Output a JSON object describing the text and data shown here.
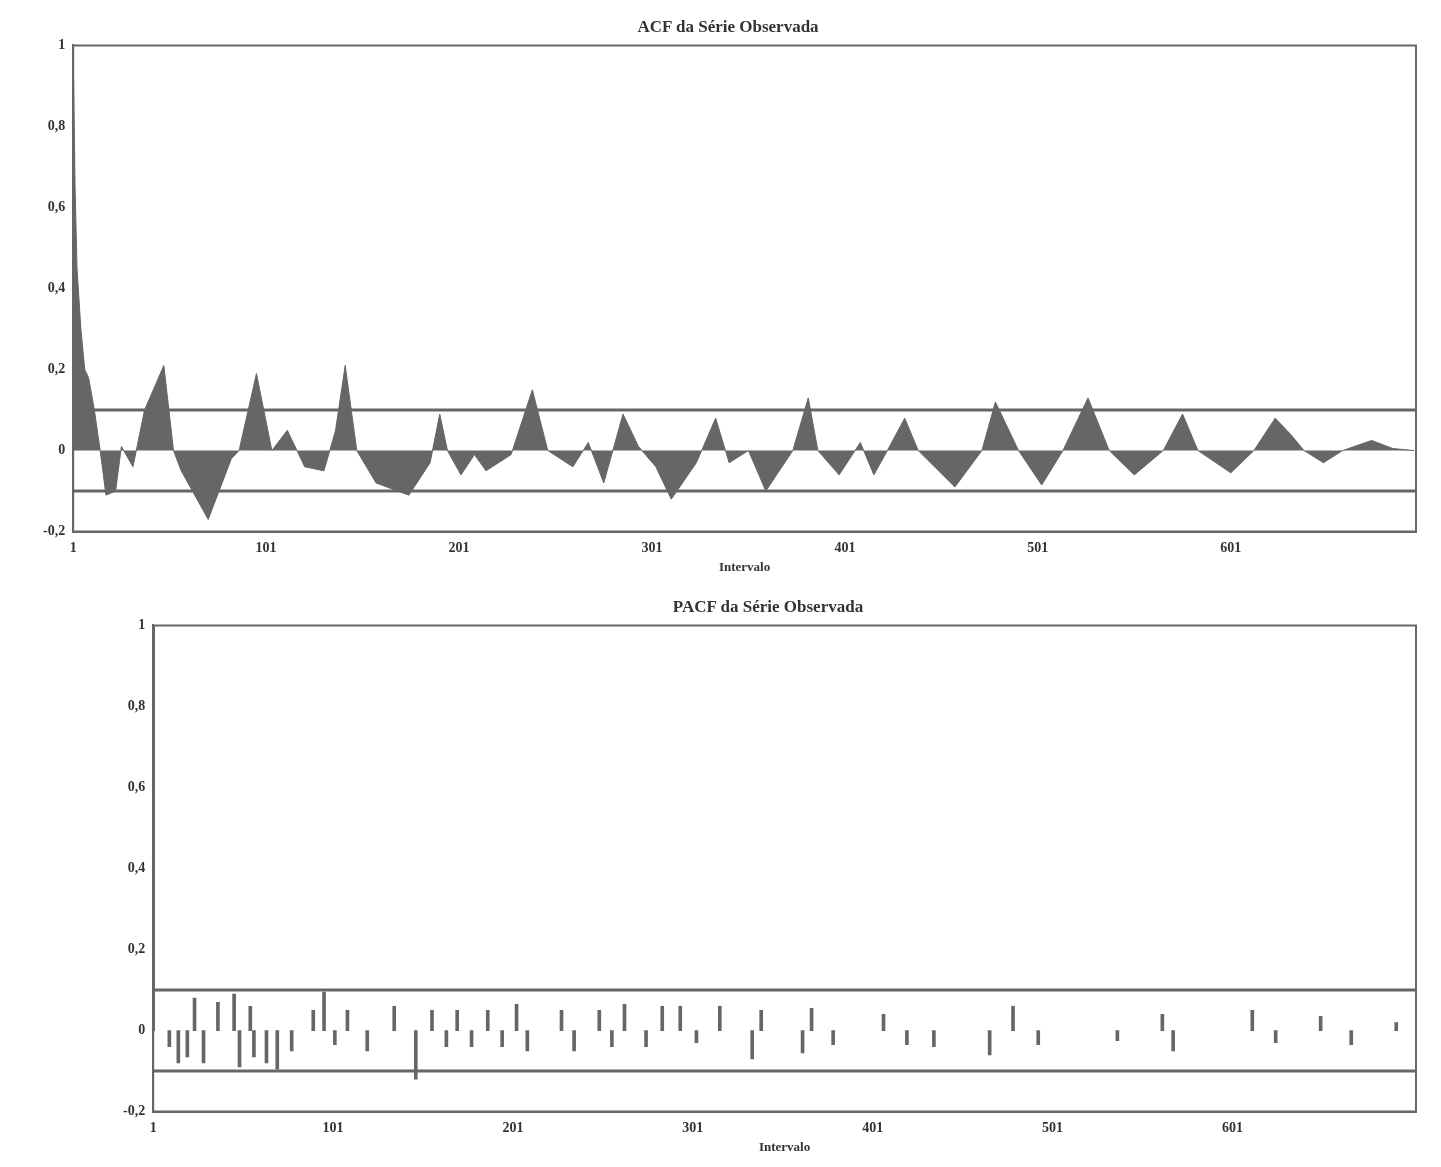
{
  "chart_data": [
    {
      "type": "area",
      "title": "ACF da Série Observada",
      "xlabel": "Intervalo",
      "color": "#666666",
      "x": [
        1,
        2,
        3,
        5,
        7,
        9,
        12,
        15,
        18,
        23,
        26,
        32,
        38,
        48,
        53,
        57,
        71,
        83,
        87,
        96,
        104,
        112,
        121,
        131,
        137,
        142,
        148,
        158,
        175,
        186,
        191,
        195,
        202,
        209,
        215,
        228,
        239,
        247,
        260,
        268,
        276,
        286,
        294,
        303,
        311,
        324,
        334,
        341,
        351,
        360,
        374,
        382,
        387,
        398,
        409,
        416,
        423,
        432,
        439,
        458,
        472,
        479,
        491,
        503,
        514,
        527,
        538,
        551,
        566,
        576,
        584,
        601,
        613,
        624,
        632,
        639,
        649,
        659,
        674,
        685,
        696
      ],
      "values": [
        1.0,
        0.65,
        0.45,
        0.3,
        0.2,
        0.18,
        0.1,
        0.0,
        -0.11,
        -0.1,
        0.01,
        -0.04,
        0.1,
        0.21,
        0.0,
        -0.05,
        -0.17,
        -0.02,
        0.0,
        0.19,
        0.0,
        0.05,
        -0.04,
        -0.05,
        0.05,
        0.21,
        0.0,
        -0.08,
        -0.11,
        -0.03,
        0.09,
        0.0,
        -0.06,
        -0.01,
        -0.05,
        -0.01,
        0.15,
        0.0,
        -0.04,
        0.02,
        -0.08,
        0.09,
        0.01,
        -0.04,
        -0.12,
        -0.03,
        0.08,
        -0.03,
        0.0,
        -0.1,
        0.0,
        0.13,
        0.0,
        -0.06,
        0.02,
        -0.06,
        0.0,
        0.08,
        0.0,
        -0.09,
        0.0,
        0.12,
        0.0,
        -0.085,
        0.0,
        0.13,
        0.0,
        -0.06,
        0.0,
        0.09,
        0.0,
        -0.055,
        0.0,
        0.08,
        0.04,
        0.0,
        -0.03,
        0.0,
        0.025,
        0.005,
        0.0
      ],
      "xlim": [
        1,
        697
      ],
      "xticks": [
        1,
        101,
        201,
        301,
        401,
        501,
        601
      ],
      "ylim": [
        -0.2,
        1
      ],
      "yticks": [
        {
          "value": -0.2,
          "label": "-0,2"
        },
        {
          "value": 0,
          "label": "0"
        },
        {
          "value": 0.2,
          "label": "0,2"
        },
        {
          "value": 0.4,
          "label": "0,4"
        },
        {
          "value": 0.6,
          "label": "0,6"
        },
        {
          "value": 0.8,
          "label": "0,8"
        },
        {
          "value": 1,
          "label": "1"
        }
      ],
      "ref_lines": [
        {
          "axis": "y",
          "value": 0.1,
          "color": "#666666"
        },
        {
          "axis": "y",
          "value": -0.1,
          "color": "#666666"
        }
      ],
      "grid": false,
      "legend": false
    },
    {
      "type": "bar",
      "title": "PACF da Série Observada",
      "xlabel": "Intervalo",
      "color": "#666666",
      "x": [
        1,
        10,
        15,
        20,
        24,
        29,
        37,
        46,
        49,
        55,
        57,
        64,
        70,
        78,
        90,
        96,
        102,
        109,
        120,
        135,
        147,
        156,
        164,
        170,
        178,
        187,
        195,
        203,
        209,
        228,
        235,
        249,
        256,
        263,
        275,
        284,
        294,
        303,
        316,
        334,
        339,
        362,
        367,
        379,
        407,
        420,
        435,
        466,
        479,
        493,
        537,
        562,
        568,
        612,
        625,
        650,
        667,
        692
      ],
      "values": [
        1.0,
        -0.04,
        -0.08,
        -0.065,
        0.08,
        -0.08,
        0.07,
        0.09,
        -0.09,
        0.06,
        -0.065,
        -0.08,
        -0.095,
        -0.05,
        0.05,
        0.095,
        -0.035,
        0.05,
        -0.05,
        0.06,
        -0.12,
        0.05,
        -0.04,
        0.05,
        -0.04,
        0.05,
        -0.04,
        0.065,
        -0.05,
        0.05,
        -0.05,
        0.05,
        -0.04,
        0.065,
        -0.04,
        0.06,
        0.06,
        -0.03,
        0.06,
        -0.07,
        0.05,
        -0.055,
        0.055,
        -0.035,
        0.04,
        -0.035,
        -0.04,
        -0.06,
        0.06,
        -0.035,
        -0.025,
        0.04,
        -0.05,
        0.05,
        -0.03,
        0.035,
        -0.035,
        0.02
      ],
      "xlim": [
        1,
        703
      ],
      "xticks": [
        1,
        101,
        201,
        301,
        401,
        501,
        601
      ],
      "ylim": [
        -0.2,
        1
      ],
      "yticks": [
        {
          "value": -0.2,
          "label": "-0,2"
        },
        {
          "value": 0,
          "label": "0"
        },
        {
          "value": 0.2,
          "label": "0,2"
        },
        {
          "value": 0.4,
          "label": "0,4"
        },
        {
          "value": 0.6,
          "label": "0,6"
        },
        {
          "value": 0.8,
          "label": "0,8"
        },
        {
          "value": 1,
          "label": "1"
        }
      ],
      "ref_lines": [
        {
          "axis": "y",
          "value": 0.1,
          "color": "#666666"
        },
        {
          "axis": "y",
          "value": -0.1,
          "color": "#666666"
        }
      ],
      "grid": false,
      "legend": false
    }
  ]
}
